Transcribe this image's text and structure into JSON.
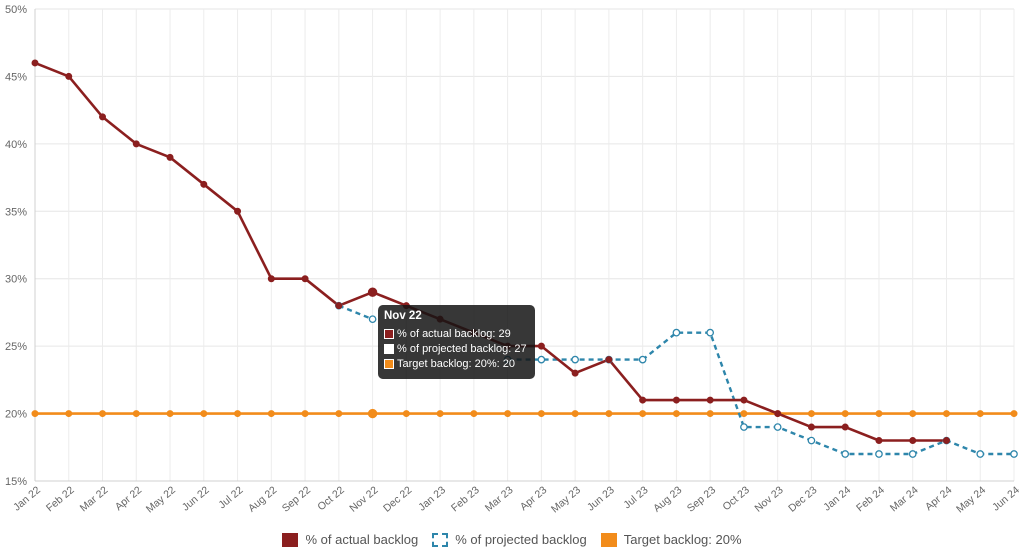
{
  "chart_data": {
    "type": "line",
    "categories": [
      "Jan 22",
      "Feb 22",
      "Mar 22",
      "Apr 22",
      "May 22",
      "Jun 22",
      "Jul 22",
      "Aug 22",
      "Sep 22",
      "Oct 22",
      "Nov 22",
      "Dec 22",
      "Jan 23",
      "Feb 23",
      "Mar 23",
      "Apr 23",
      "May 23",
      "Jun 23",
      "Jul 23",
      "Aug 23",
      "Sep 23",
      "Oct 23",
      "Nov 23",
      "Dec 23",
      "Jan 24",
      "Feb 24",
      "Mar 24",
      "Apr 24",
      "May 24",
      "Jun 24"
    ],
    "y_ticks": [
      "15%",
      "20%",
      "25%",
      "30%",
      "35%",
      "40%",
      "45%",
      "50%"
    ],
    "ylim": [
      15,
      50
    ],
    "series": [
      {
        "name": "% of actual backlog",
        "color": "#8b1f1f",
        "style": "solid",
        "values": [
          46,
          45,
          42,
          40,
          39,
          37,
          35,
          30,
          30,
          28,
          29,
          28,
          27,
          26,
          25,
          25,
          23,
          24,
          21,
          21,
          21,
          21,
          20,
          19,
          19,
          18,
          18,
          18,
          null,
          null
        ]
      },
      {
        "name": "% of projected backlog",
        "color": "#2e86ab",
        "style": "dashed",
        "values": [
          null,
          null,
          null,
          null,
          null,
          null,
          null,
          null,
          null,
          28,
          27,
          null,
          null,
          null,
          24,
          24,
          24,
          24,
          24,
          26,
          26,
          19,
          19,
          18,
          17,
          17,
          17,
          18,
          17,
          17
        ]
      },
      {
        "name": "Target backlog: 20%",
        "color": "#f28c1b",
        "style": "solid",
        "values": [
          20,
          20,
          20,
          20,
          20,
          20,
          20,
          20,
          20,
          20,
          20,
          20,
          20,
          20,
          20,
          20,
          20,
          20,
          20,
          20,
          20,
          20,
          20,
          20,
          20,
          20,
          20,
          20,
          20,
          20
        ]
      }
    ],
    "tooltip": {
      "title": "Nov 22",
      "rows": [
        {
          "label": "% of actual backlog: 29",
          "color": "#8b1f1f"
        },
        {
          "label": "% of projected backlog: 27",
          "color": "#ffffff"
        },
        {
          "label": "Target backlog: 20%: 20",
          "color": "#f28c1b"
        }
      ]
    },
    "legend": [
      "% of actual backlog",
      "% of projected backlog",
      "Target backlog: 20%"
    ]
  }
}
